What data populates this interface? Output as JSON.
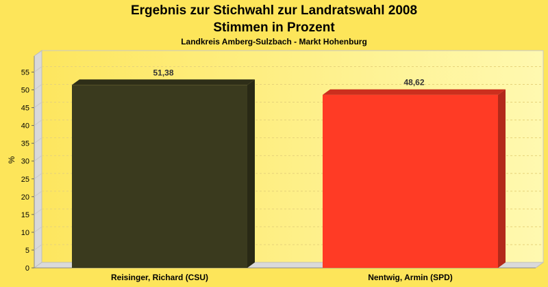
{
  "chart_data": {
    "type": "bar",
    "title": "Ergebnis zur Stichwahl zur Landratswahl 2008",
    "title_line2": "Stimmen in Prozent",
    "subtitle": "Landkreis Amberg-Sulzbach - Markt Hohenburg",
    "ylabel": "%",
    "xlabel": "",
    "ylim": [
      0,
      58
    ],
    "yticks": [
      0,
      5,
      10,
      15,
      20,
      25,
      30,
      35,
      40,
      45,
      50,
      55
    ],
    "grid": true,
    "categories": [
      "Reisinger, Richard (CSU)",
      "Nentwig, Armin (SPD)"
    ],
    "values": [
      51.38,
      48.62
    ],
    "value_labels": [
      "51,38",
      "48,62"
    ],
    "colors": [
      "#3A3A1E",
      "#FF3B25"
    ]
  }
}
